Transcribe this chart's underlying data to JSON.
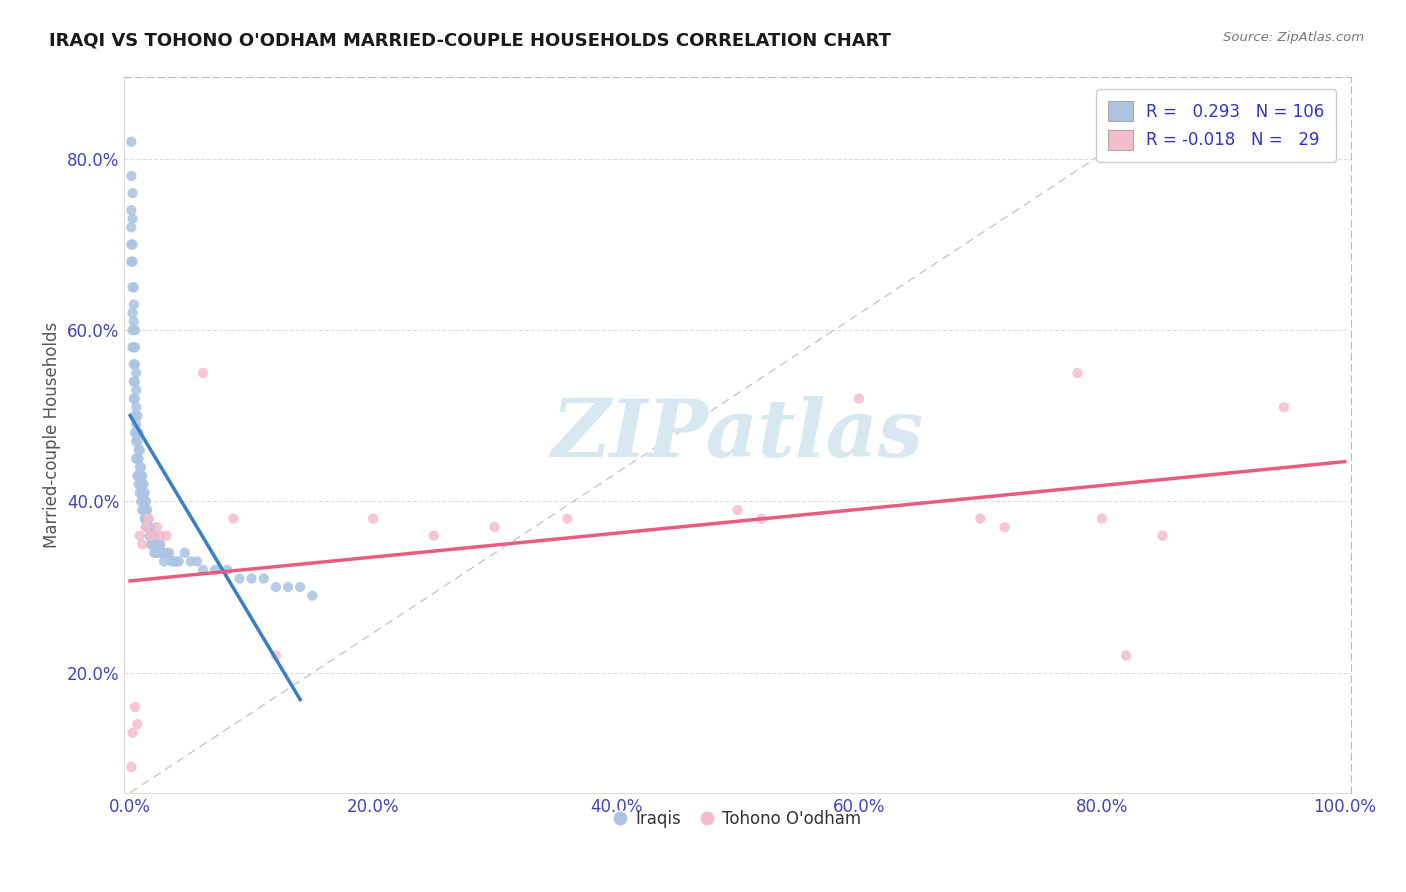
{
  "title": "IRAQI VS TOHONO O'ODHAM MARRIED-COUPLE HOUSEHOLDS CORRELATION CHART",
  "source": "Source: ZipAtlas.com",
  "xlabel": "",
  "ylabel": "Married-couple Households",
  "xlim": [
    -0.005,
    1.005
  ],
  "ylim": [
    0.06,
    0.895
  ],
  "xticks": [
    0.0,
    0.2,
    0.4,
    0.6,
    0.8,
    1.0
  ],
  "yticks": [
    0.2,
    0.4,
    0.6,
    0.8
  ],
  "ytick_labels": [
    "20.0%",
    "40.0%",
    "60.0%",
    "80.0%"
  ],
  "xtick_labels": [
    "0.0%",
    "20.0%",
    "40.0%",
    "60.0%",
    "80.0%",
    "100.0%"
  ],
  "iraqis_color": "#aac4e2",
  "tohono_color": "#f5bccb",
  "iraqis_line_color": "#3a7fc1",
  "tohono_line_color": "#e85c80",
  "iraqis_R": 0.293,
  "iraqis_N": 106,
  "tohono_R": -0.018,
  "tohono_N": 29,
  "watermark_text": "ZIPatlas",
  "watermark_color": "#d8e8f0",
  "background_color": "#ffffff",
  "grid_color": "#dddddd",
  "tick_color": "#4444bb",
  "label_color": "#555555",
  "legend_text_color": "#3333cc",
  "iraqis_x": [
    0.001,
    0.001,
    0.001,
    0.001,
    0.001,
    0.001,
    0.002,
    0.002,
    0.002,
    0.002,
    0.002,
    0.002,
    0.002,
    0.002,
    0.003,
    0.003,
    0.003,
    0.003,
    0.003,
    0.003,
    0.003,
    0.004,
    0.004,
    0.004,
    0.004,
    0.004,
    0.004,
    0.004,
    0.005,
    0.005,
    0.005,
    0.005,
    0.005,
    0.005,
    0.006,
    0.006,
    0.006,
    0.006,
    0.006,
    0.007,
    0.007,
    0.007,
    0.007,
    0.007,
    0.008,
    0.008,
    0.008,
    0.008,
    0.009,
    0.009,
    0.009,
    0.009,
    0.01,
    0.01,
    0.01,
    0.01,
    0.011,
    0.011,
    0.011,
    0.012,
    0.012,
    0.012,
    0.013,
    0.013,
    0.013,
    0.014,
    0.014,
    0.015,
    0.015,
    0.016,
    0.016,
    0.017,
    0.017,
    0.018,
    0.018,
    0.019,
    0.02,
    0.02,
    0.021,
    0.022,
    0.022,
    0.023,
    0.024,
    0.025,
    0.026,
    0.027,
    0.028,
    0.03,
    0.032,
    0.034,
    0.036,
    0.038,
    0.04,
    0.045,
    0.05,
    0.055,
    0.06,
    0.07,
    0.08,
    0.09,
    0.1,
    0.11,
    0.12,
    0.13,
    0.14,
    0.15
  ],
  "iraqis_y": [
    0.82,
    0.78,
    0.74,
    0.72,
    0.7,
    0.68,
    0.76,
    0.73,
    0.7,
    0.68,
    0.65,
    0.62,
    0.6,
    0.58,
    0.65,
    0.63,
    0.61,
    0.58,
    0.56,
    0.54,
    0.52,
    0.6,
    0.58,
    0.56,
    0.54,
    0.52,
    0.5,
    0.48,
    0.55,
    0.53,
    0.51,
    0.49,
    0.47,
    0.45,
    0.5,
    0.48,
    0.47,
    0.45,
    0.43,
    0.48,
    0.46,
    0.45,
    0.43,
    0.42,
    0.46,
    0.44,
    0.43,
    0.41,
    0.44,
    0.43,
    0.42,
    0.4,
    0.43,
    0.42,
    0.41,
    0.39,
    0.42,
    0.41,
    0.39,
    0.41,
    0.4,
    0.38,
    0.4,
    0.39,
    0.37,
    0.39,
    0.38,
    0.38,
    0.37,
    0.37,
    0.36,
    0.37,
    0.35,
    0.36,
    0.35,
    0.35,
    0.36,
    0.34,
    0.35,
    0.35,
    0.34,
    0.34,
    0.35,
    0.35,
    0.34,
    0.34,
    0.33,
    0.34,
    0.34,
    0.33,
    0.33,
    0.33,
    0.33,
    0.34,
    0.33,
    0.33,
    0.32,
    0.32,
    0.32,
    0.31,
    0.31,
    0.31,
    0.3,
    0.3,
    0.3,
    0.29
  ],
  "tohono_x": [
    0.001,
    0.002,
    0.004,
    0.006,
    0.008,
    0.01,
    0.013,
    0.015,
    0.018,
    0.022,
    0.025,
    0.03,
    0.06,
    0.085,
    0.12,
    0.2,
    0.25,
    0.3,
    0.36,
    0.5,
    0.52,
    0.6,
    0.7,
    0.72,
    0.78,
    0.8,
    0.82,
    0.85,
    0.95
  ],
  "tohono_y": [
    0.09,
    0.13,
    0.16,
    0.14,
    0.36,
    0.35,
    0.37,
    0.38,
    0.36,
    0.37,
    0.36,
    0.36,
    0.55,
    0.38,
    0.22,
    0.38,
    0.36,
    0.37,
    0.38,
    0.39,
    0.38,
    0.52,
    0.38,
    0.37,
    0.55,
    0.38,
    0.22,
    0.36,
    0.51
  ]
}
